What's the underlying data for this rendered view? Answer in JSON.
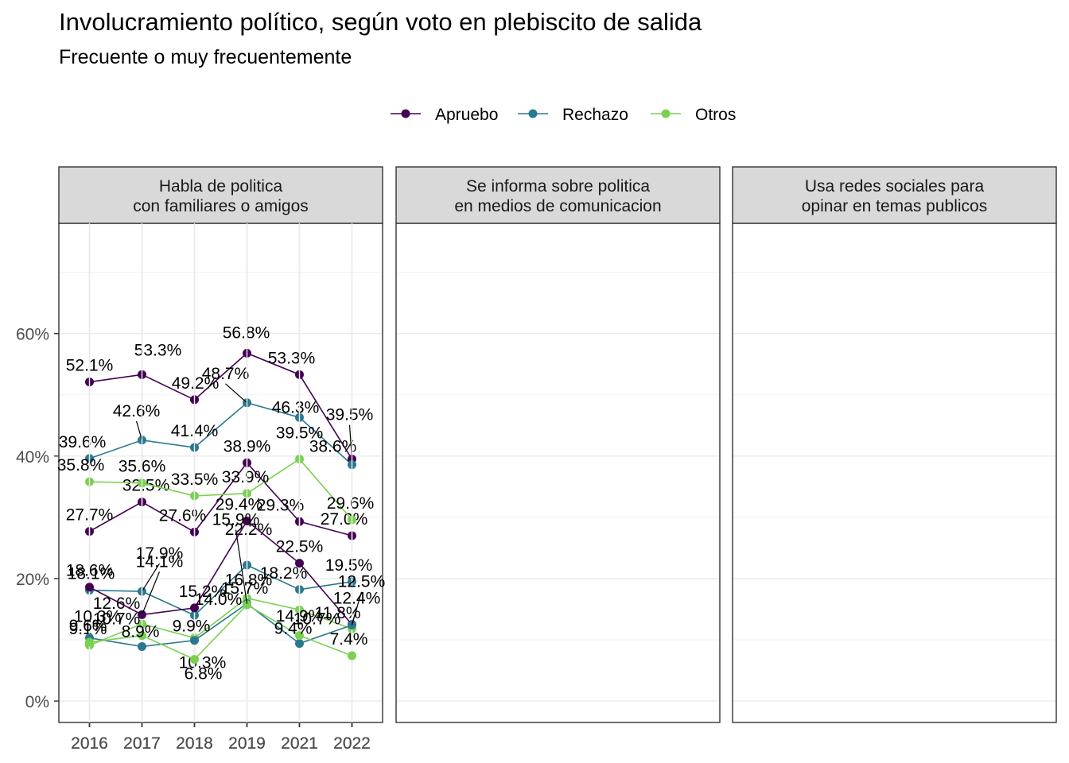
{
  "chart_data": {
    "type": "line",
    "title": "Involucramiento político, según voto en plebiscito de salida",
    "subtitle": "Frecuente o muy frecuentemente",
    "xlabel": "",
    "ylabel": "",
    "x": [
      "2016",
      "2017",
      "2018",
      "2019",
      "2021",
      "2022"
    ],
    "y_ticks": [
      "0%",
      "20%",
      "40%",
      "60%"
    ],
    "ylim": [
      -3.5,
      78
    ],
    "grid": true,
    "legend_position": "top",
    "legend": [
      {
        "name": "Apruebo",
        "color": "#440154"
      },
      {
        "name": "Rechazo",
        "color": "#2A788E"
      },
      {
        "name": "Otros",
        "color": "#7AD151"
      }
    ],
    "panels": [
      {
        "title_lines": [
          "Habla de politica",
          "con familiares o amigos"
        ],
        "series": [
          {
            "name": "Apruebo",
            "color": "#440154",
            "values": [
              27.7,
              32.5,
              27.6,
              38.9,
              29.3,
              27.0
            ],
            "labels": [
              "27.7%",
              "32.5%",
              "27.6%",
              "38.9%",
              "29.3%",
              "27.0%"
            ]
          },
          {
            "name": "Rechazo",
            "color": "#2A788E",
            "values": [
              18.1,
              17.9,
              14.0,
              22.2,
              18.2,
              19.5
            ],
            "labels": [
              "18.1%",
              "17.9%",
              "14.0%",
              "22.2%",
              "18.2%",
              "19.5%"
            ]
          },
          {
            "name": "Otros",
            "color": "#7AD151",
            "values": [
              9.1,
              12.6,
              10.3,
              16.8,
              14.9,
              11.8
            ],
            "labels": [
              "9.1%",
              "12.6%",
              "10.3%",
              "16.8%",
              "14.9%",
              "11.8%"
            ]
          }
        ]
      },
      {
        "title_lines": [
          "Se informa sobre politica",
          "en medios de comunicacion"
        ],
        "series": [
          {
            "name": "Apruebo",
            "color": "#440154",
            "values": [
              52.1,
              53.3,
              49.2,
              56.8,
              53.3,
              39.5
            ],
            "labels": [
              "52.1%",
              "53.3%",
              "49.2%",
              "56.8%",
              "53.3%",
              "39.5%"
            ]
          },
          {
            "name": "Rechazo",
            "color": "#2A788E",
            "values": [
              39.6,
              42.6,
              41.4,
              48.7,
              46.3,
              38.6
            ],
            "labels": [
              "39.6%",
              "42.6%",
              "41.4%",
              "48.7%",
              "46.3%",
              "38.6%"
            ]
          },
          {
            "name": "Otros",
            "color": "#7AD151",
            "values": [
              35.8,
              35.6,
              33.5,
              33.9,
              39.5,
              29.6
            ],
            "labels": [
              "35.8%",
              "35.6%",
              "33.5%",
              "33.9%",
              "39.5%",
              "29.6%"
            ]
          }
        ]
      },
      {
        "title_lines": [
          "Usa redes sociales para",
          "opinar en temas publicos"
        ],
        "series": [
          {
            "name": "Apruebo",
            "color": "#440154",
            "values": [
              18.6,
              14.1,
              15.2,
              29.4,
              22.5,
              12.5
            ],
            "labels": [
              "18.6%",
              "14.1%",
              "15.2%",
              "29.4%",
              "22.5%",
              "12.5%"
            ]
          },
          {
            "name": "Rechazo",
            "color": "#2A788E",
            "values": [
              10.3,
              8.9,
              9.9,
              15.9,
              9.4,
              12.4
            ],
            "labels": [
              "10.3%",
              "8.9%",
              "9.9%",
              "15.9%",
              "9.4%",
              "12.4%"
            ]
          },
          {
            "name": "Otros",
            "color": "#7AD151",
            "values": [
              9.6,
              10.7,
              6.8,
              15.7,
              10.7,
              7.4
            ],
            "labels": [
              "9.6%",
              "10.7%",
              "6.8%",
              "15.7%",
              "10.7%",
              "7.4%"
            ]
          }
        ]
      }
    ]
  }
}
